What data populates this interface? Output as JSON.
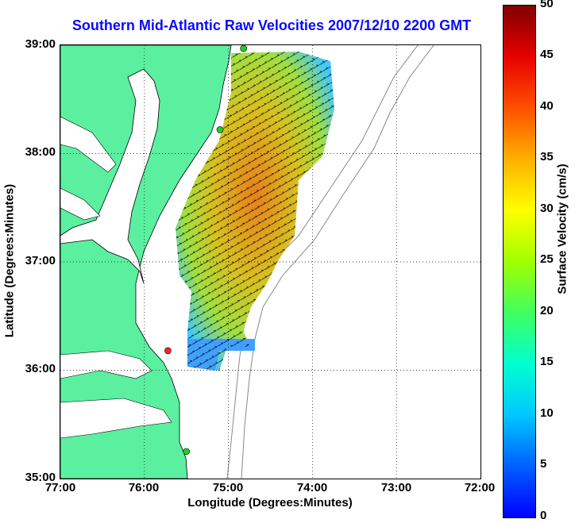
{
  "title": "Southern Mid-Atlantic Raw Velocities 2007/12/10 2200 GMT",
  "xlabel": "Longitude (Degrees:Minutes)",
  "ylabel": "Latitude (Degrees:Minutes)",
  "colorbar": {
    "label": "Surface Velocity (cm/s)",
    "ticks": [
      "0",
      "5",
      "10",
      "15",
      "20",
      "25",
      "30",
      "35",
      "40",
      "45",
      "50"
    ],
    "min": 0,
    "max": 50
  },
  "xticks": [
    "77:00",
    "76:00",
    "75:00",
    "74:00",
    "73:00",
    "72:00"
  ],
  "yticks": [
    "39:00",
    "38:00",
    "37:00",
    "36:00",
    "35:00"
  ],
  "map": {
    "lon_range": [
      -77,
      -72
    ],
    "lat_range": [
      35,
      39
    ],
    "land_color": "#5af0a0",
    "grid": "dotted",
    "stations": [
      {
        "color": "#22cc22",
        "lon": -74.82,
        "lat": 38.97
      },
      {
        "color": "#22cc22",
        "lon": -75.1,
        "lat": 38.22
      },
      {
        "color": "#ff2222",
        "lon": -75.72,
        "lat": 36.18
      },
      {
        "color": "#22cc22",
        "lon": -75.5,
        "lat": 35.25
      }
    ]
  }
}
